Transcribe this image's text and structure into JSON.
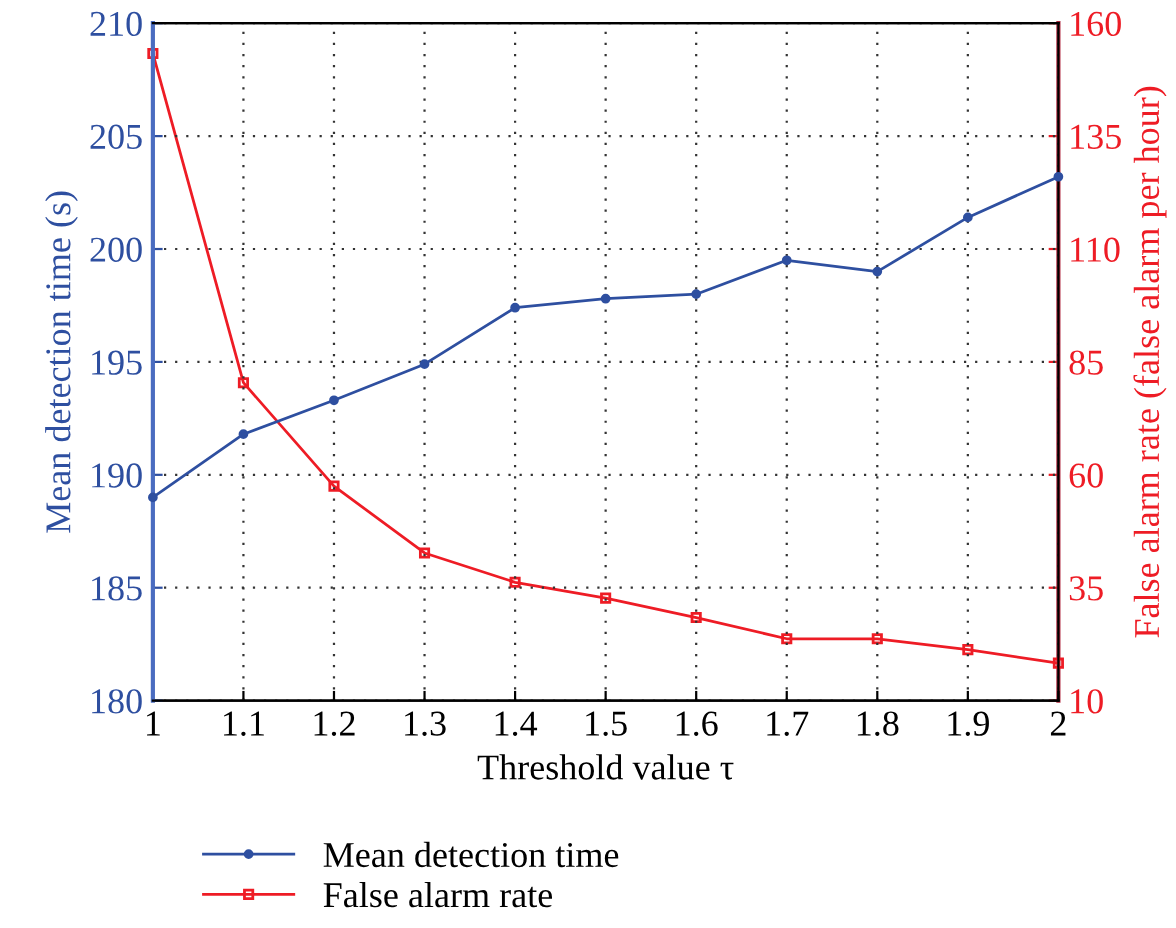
{
  "chart_data": {
    "type": "line",
    "xlabel": "Threshold value τ",
    "ylabel": "Mean detection time (s)",
    "y2label": "False alarm rate (false alarm per hour)",
    "x": [
      1,
      1.1,
      1.2,
      1.3,
      1.4,
      1.5,
      1.6,
      1.7,
      1.8,
      1.9,
      2
    ],
    "series": [
      {
        "name": "Mean detection time",
        "color": "#2e4fa0",
        "marker": "circle",
        "values": [
          189.0,
          191.8,
          193.3,
          194.9,
          197.4,
          197.8,
          198.0,
          199.5,
          199.0,
          201.4,
          203.2
        ]
      },
      {
        "name": "False alarm rate",
        "color": "#ee1c25",
        "marker": "square",
        "axis": "y2",
        "values": [
          153.3,
          80.4,
          57.5,
          42.7,
          36.2,
          32.7,
          28.4,
          23.7,
          23.7,
          21.3,
          18.3
        ]
      }
    ],
    "xlim": [
      1,
      2
    ],
    "xticks": [
      1,
      1.1,
      1.2,
      1.3,
      1.4,
      1.5,
      1.6,
      1.7,
      1.8,
      1.9,
      2
    ],
    "ylim": [
      180,
      210
    ],
    "yticks": [
      180,
      185,
      190,
      195,
      200,
      205,
      210
    ],
    "y2lim": [
      10,
      160
    ],
    "y2ticks": [
      10,
      35,
      60,
      85,
      110,
      135,
      160
    ],
    "grid": true,
    "legend": "bottom",
    "line_style": "solid"
  }
}
